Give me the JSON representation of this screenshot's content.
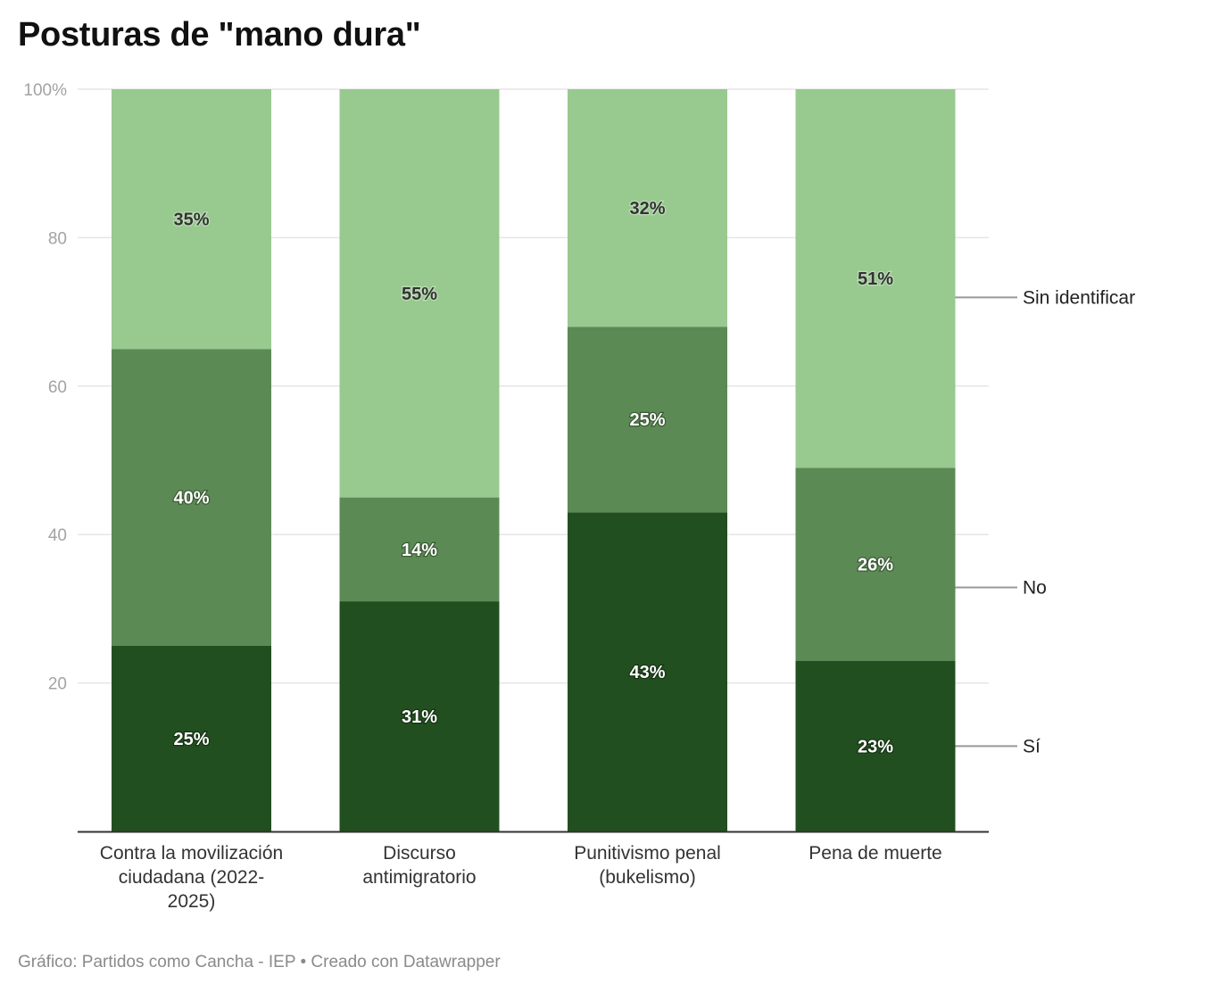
{
  "title": "Posturas de \"mano dura\"",
  "footer": {
    "source": "Gráfico: Partidos como Cancha - IEP",
    "separator": " • ",
    "credit": "Creado con Datawrapper"
  },
  "colors": {
    "si": "#224f1f",
    "no": "#5b8a54",
    "sin_identificar": "#98c98f",
    "grid": "#e5e5e5",
    "axis": "#333333",
    "legend_line": "#999999"
  },
  "chart_data": {
    "type": "bar",
    "stacked": true,
    "orientation": "vertical",
    "title": "Posturas de \"mano dura\"",
    "xlabel": "",
    "ylabel": "",
    "ylim": [
      0,
      100
    ],
    "yticks": [
      0,
      20,
      40,
      60,
      80,
      100
    ],
    "ytick_labels": [
      "",
      "20",
      "40",
      "60",
      "80",
      "100%"
    ],
    "grid": true,
    "legend_placement": "right (direct labels)",
    "categories": [
      [
        "Contra la movilización",
        "ciudadana (2022-",
        "2025)"
      ],
      [
        "Discurso",
        "antimigratorio"
      ],
      [
        "Punitivismo penal",
        "(bukelismo)"
      ],
      [
        "Pena de muerte"
      ]
    ],
    "series": [
      {
        "name": "Sí",
        "key": "si",
        "values": [
          25,
          31,
          43,
          23
        ],
        "labels": [
          "25%",
          "31%",
          "43%",
          "23%"
        ]
      },
      {
        "name": "No",
        "key": "no",
        "values": [
          40,
          14,
          25,
          26
        ],
        "labels": [
          "40%",
          "14%",
          "25%",
          "26%"
        ]
      },
      {
        "name": "Sin identificar",
        "key": "sin_identificar",
        "values": [
          35,
          55,
          32,
          51
        ],
        "labels": [
          "35%",
          "55%",
          "32%",
          "51%"
        ]
      }
    ]
  }
}
